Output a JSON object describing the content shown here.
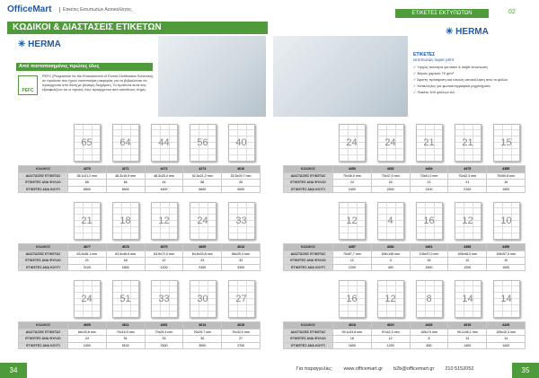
{
  "header": {
    "brand": "OfficeMart",
    "subtitle": "Ετικέτες Εκτυπωτών Αυτοκόλλητες",
    "section": "ΕΤΙΚΕΤΕΣ ΕΚΤΥΠΩΤΩΝ",
    "section_number": "02"
  },
  "banner": {
    "title": "ΚΩΔΙΚΟΙ & ΔΙΑΣΤΑΣΕΙΣ ΕΤΙΚΕΤΩΝ",
    "brand": "HERMA"
  },
  "intro": {
    "brand": "HERMA",
    "heading": "Από πιστοποιημένες πρώτες ύλες",
    "badge": "PEFC",
    "text": "PEFC (Programme for the Endorsement of Forest Certification Schemes), σε προϊόντα που έχουν πιστοποίηση αειφορίας για να βεβαιώνεται ότι προέρχονται από δάση με βιώσιμη διαχείριση. Τα προϊόντα αυτά σας εξασφαλίζουν ότι οι πρώτες ύλες προέρχονται από υπεύθυνες πηγές."
  },
  "feature_box": {
    "title": "ΕΤΙΚΕΤΕΣ",
    "subtitle": "εκτυπωτών super print",
    "items": [
      "Υψηλή ποιότητα για laser & inkjet εκτυπωτές",
      "Βάρος χαρτιού 70 g/m²",
      "Άριστη πρόσφυση και εύκολη αποκόλληση από το φύλλο",
      "Κατάλληλες για φωτοαντιγραφικά μηχανήματα",
      "Πακέτο 100 φύλλων Α4."
    ]
  },
  "row_labels": [
    "ΚΩΔΙΚΟΣ",
    "ΔΙΑΣΤΑΣΕΙΣ ΕΤΙΚΕΤΑΣ",
    "ΕΤΙΚΕΤΕΣ ΑΝΑ ΦΥΛΛΟ",
    "ΕΤΙΚΕΤΕΣ ΑΝΑ ΚΟΥΤΙ"
  ],
  "tables": [
    {
      "columns": [
        {
          "code": "4270",
          "size": "38,1x21,2 mm",
          "per_sheet": 65,
          "per_box": 6500
        },
        {
          "code": "4271",
          "size": "48,3x16,9 mm",
          "per_sheet": 64,
          "per_box": 6400
        },
        {
          "code": "4272",
          "size": "48,3x25,4 mm",
          "per_sheet": 44,
          "per_box": 4400
        },
        {
          "code": "4273",
          "size": "52,5x21,2 mm",
          "per_sheet": 56,
          "per_box": 5600
        },
        {
          "code": "4610",
          "size": "52,5x29,7 mm",
          "per_sheet": 40,
          "per_box": 4000
        }
      ]
    },
    {
      "columns": [
        {
          "code": "4453",
          "size": "70x36,0 mm",
          "per_sheet": 24,
          "per_box": 2400
        },
        {
          "code": "4452",
          "size": "70x37,0 mm",
          "per_sheet": 24,
          "per_box": 2400
        },
        {
          "code": "4454",
          "size": "70x41,0 mm",
          "per_sheet": 21,
          "per_box": 2100
        },
        {
          "code": "4475",
          "size": "70x42,3 mm",
          "per_sheet": 21,
          "per_box": 2100
        },
        {
          "code": "4455",
          "size": "70x50,8 mm",
          "per_sheet": 15,
          "per_box": 1500
        }
      ]
    },
    {
      "columns": [
        {
          "code": "4677",
          "size": "63,5x38,1 mm",
          "per_sheet": 21,
          "per_box": 2100
        },
        {
          "code": "4678",
          "size": "63,5x46,6 mm",
          "per_sheet": 18,
          "per_box": 1800
        },
        {
          "code": "4679",
          "size": "63,5x72,0 mm",
          "per_sheet": 12,
          "per_box": 1200
        },
        {
          "code": "4605",
          "size": "64,6x33,8 mm",
          "per_sheet": 24,
          "per_box": 2400
        },
        {
          "code": "4613",
          "size": "66x25,4 mm",
          "per_sheet": 33,
          "per_box": 3300
        }
      ]
    },
    {
      "columns": [
        {
          "code": "4457",
          "size": "70x67,7 mm",
          "per_sheet": 12,
          "per_box": 1200
        },
        {
          "code": "4282",
          "size": "105x148 mm",
          "per_sheet": 4,
          "per_box": 400
        },
        {
          "code": "4461",
          "size": "105x37,0 mm",
          "per_sheet": 16,
          "per_box": 1600
        },
        {
          "code": "4458",
          "size": "105x48,0 mm",
          "per_sheet": 12,
          "per_box": 1200
        },
        {
          "code": "4459",
          "size": "105x57,0 mm",
          "per_sheet": 10,
          "per_box": 1000
        }
      ]
    },
    {
      "columns": [
        {
          "code": "4609",
          "size": "66x33,8 mm",
          "per_sheet": 24,
          "per_box": 2400
        },
        {
          "code": "4611",
          "size": "70x16,9 mm",
          "per_sheet": 51,
          "per_box": 5100
        },
        {
          "code": "4451",
          "size": "70x25,4 mm",
          "per_sheet": 33,
          "per_box": 3300
        },
        {
          "code": "4614",
          "size": "70x29,7 mm",
          "per_sheet": 30,
          "per_box": 3000
        },
        {
          "code": "4615",
          "size": "70x32,0 mm",
          "per_sheet": 27,
          "per_box": 2700
        }
      ]
    },
    {
      "columns": [
        {
          "code": "4618",
          "size": "99,1x33,8 mm",
          "per_sheet": 16,
          "per_box": 1600
        },
        {
          "code": "4620",
          "size": "97x42,3 mm",
          "per_sheet": 12,
          "per_box": 1200
        },
        {
          "code": "4426",
          "size": "105x74 mm",
          "per_sheet": 8,
          "per_box": 800
        },
        {
          "code": "4619",
          "size": "99,1x38,1 mm",
          "per_sheet": 14,
          "per_box": 1400
        },
        {
          "code": "4425",
          "size": "105x42,3 mm",
          "per_sheet": 14,
          "per_box": 1400
        }
      ]
    }
  ],
  "footer": {
    "left_page": "34",
    "right_page": "35",
    "order_label": "Για παραγγελίες:",
    "website": "www.officemart.gr",
    "email": "b2b@officemart.gr",
    "phone": "210 5152052"
  }
}
